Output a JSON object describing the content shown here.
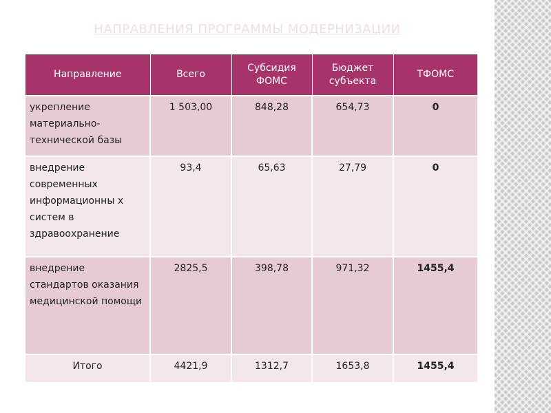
{
  "slide": {
    "title": "Направления программы модернизации"
  },
  "table": {
    "headers": [
      "Направление",
      "Всего",
      "Субсидия ФОМС",
      "Бюджет субъекта",
      "ТФОМС"
    ],
    "rows": [
      [
        "укрепление материально-технической базы",
        "1 503,00",
        "848,28",
        "654,73",
        "0"
      ],
      [
        "внедрение современных информационны х систем в здравоохранение",
        "93,4",
        "65,63",
        "27,79",
        "0"
      ],
      [
        "внедрение стандартов оказания медицинской помощи",
        "2825,5",
        "398,78",
        "971,32",
        "1455,4"
      ]
    ],
    "total": [
      "Итого",
      "4421,9",
      "1312,7",
      "1653,8",
      "1455,4"
    ]
  },
  "colors": {
    "header_bg": "#a7336b",
    "row_dark": "#e7cbd2",
    "row_light": "#f4e7ea",
    "title": "#f1dde3"
  }
}
